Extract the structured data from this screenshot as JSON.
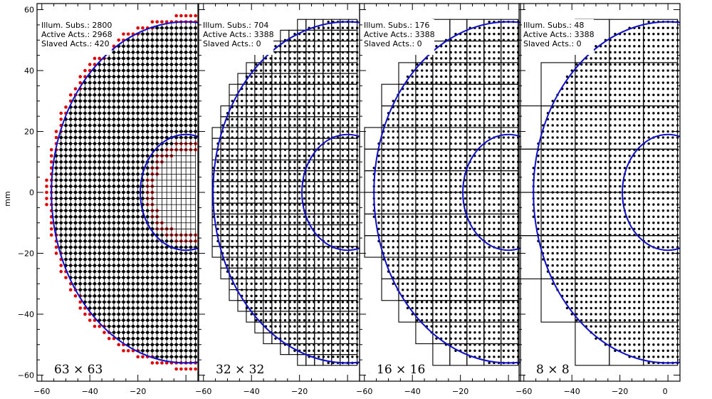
{
  "ylabel": "mm",
  "colors": {
    "actuator": "#000000",
    "slaved": "#e00000",
    "pupil": "#1010cc",
    "frame": "#000000",
    "subaperture": "#000000"
  },
  "axes": {
    "x_ticks": [
      -60,
      -40,
      -20,
      0
    ],
    "y_ticks": [
      60,
      40,
      20,
      0,
      -20,
      -40,
      -60
    ],
    "x_tick_labels": [
      "−60",
      "−40",
      "−20",
      "0"
    ],
    "y_tick_labels": [
      "60",
      "40",
      "20",
      "0",
      "−20",
      "−40",
      "−60"
    ]
  },
  "chart_data": [
    {
      "type": "scatter",
      "grid_label": "63 × 63",
      "illum_subs": "Illum. Subs.: 2800",
      "active_acts": "Active Acts.: 2968",
      "slaved_acts": "Slaved Acts.: 420",
      "xlim": [
        -62,
        5
      ],
      "ylim": [
        -62,
        62
      ],
      "actuator_pitch": 2.0,
      "outer_radius_mm": 56,
      "inner_radius_mm": 19,
      "series": [
        {
          "name": "",
          "subapertures": 2800,
          "active_actuators": 2968,
          "slaved_actuators": 420
        }
      ]
    },
    {
      "type": "scatter",
      "grid_label": "32 × 32",
      "illum_subs": "Illum. Subs.: 704",
      "active_acts": "Active Acts.: 3388",
      "slaved_acts": "Slaved Acts.: 0",
      "xlim": [
        -62,
        5
      ],
      "ylim": [
        -62,
        62
      ],
      "actuator_pitch": 2.0,
      "subaperture_size": 3.55,
      "outer_radius_mm": 56,
      "inner_radius_mm": 19,
      "series": [
        {
          "name": "",
          "subapertures": 704,
          "active_actuators": 3388,
          "slaved_actuators": 0
        }
      ]
    },
    {
      "type": "scatter",
      "grid_label": "16 × 16",
      "illum_subs": "Illum. Subs.: 176",
      "active_acts": "Active Acts.: 3388",
      "slaved_acts": "Slaved Acts.: 0",
      "xlim": [
        -62,
        5
      ],
      "ylim": [
        -62,
        62
      ],
      "actuator_pitch": 2.0,
      "subaperture_size": 7.1,
      "outer_radius_mm": 56,
      "inner_radius_mm": 19,
      "series": [
        {
          "name": "",
          "subapertures": 176,
          "active_actuators": 3388,
          "slaved_actuators": 0
        }
      ]
    },
    {
      "type": "scatter",
      "grid_label": "8 × 8",
      "illum_subs": "Illum. Subs.: 48",
      "active_acts": "Active Acts.: 3388",
      "slaved_acts": "Slaved Acts.: 0",
      "xlim": [
        -62,
        5
      ],
      "ylim": [
        -62,
        62
      ],
      "actuator_pitch": 2.0,
      "subaperture_size": 14.2,
      "outer_radius_mm": 56,
      "inner_radius_mm": 19,
      "series": [
        {
          "name": "",
          "subapertures": 48,
          "active_actuators": 3388,
          "slaved_actuators": 0
        }
      ]
    }
  ]
}
